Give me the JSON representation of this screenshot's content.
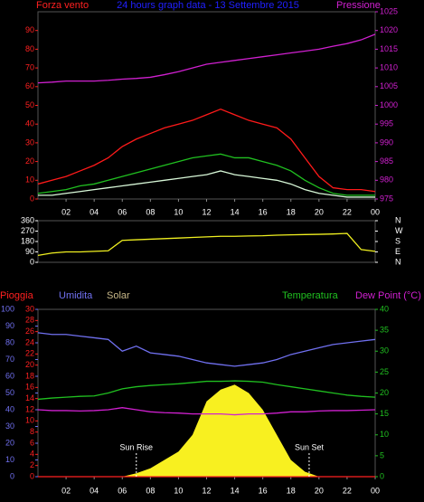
{
  "chart_data": [
    {
      "type": "line",
      "title": "24 hours graph data - 13 Settembre 2015",
      "y_label": "Forza vento",
      "x": [
        0,
        1,
        2,
        3,
        4,
        5,
        6,
        7,
        8,
        9,
        10,
        11,
        12,
        13,
        14,
        15,
        16,
        17,
        18,
        19,
        20,
        21,
        22,
        23,
        24
      ],
      "xlim": [
        0,
        24
      ],
      "xticks": [
        {
          "value": 2,
          "label": "02"
        },
        {
          "value": 4,
          "label": "04"
        },
        {
          "value": 6,
          "label": "06"
        },
        {
          "value": 8,
          "label": "08"
        },
        10,
        12,
        14,
        16,
        18,
        20,
        22,
        {
          "value": 24,
          "label": "00"
        }
      ],
      "ylim": [
        0,
        100
      ],
      "yticks": [
        0,
        10,
        20,
        30,
        40,
        50,
        60,
        70,
        80,
        90
      ],
      "y2lim": [
        975,
        1025
      ],
      "y2ticks": [
        975,
        980,
        985,
        990,
        995,
        1000,
        1005,
        1010,
        1015,
        1020,
        1025
      ],
      "series": [
        {
          "color": "#ff1a1a",
          "values": [
            8,
            10,
            12,
            15,
            18,
            22,
            28,
            32,
            35,
            38,
            40,
            42,
            45,
            48,
            45,
            42,
            40,
            38,
            32,
            22,
            12,
            6,
            5,
            5,
            4
          ]
        },
        {
          "color": "#20c020",
          "values": [
            3,
            4,
            5,
            7,
            8,
            10,
            12,
            14,
            16,
            18,
            20,
            22,
            23,
            24,
            22,
            22,
            20,
            18,
            15,
            10,
            6,
            3,
            2,
            2,
            2
          ]
        },
        {
          "color": "#d8f8d8",
          "values": [
            2,
            2,
            3,
            4,
            5,
            6,
            7,
            8,
            9,
            10,
            11,
            12,
            13,
            15,
            13,
            12,
            11,
            10,
            8,
            5,
            3,
            2,
            1,
            1,
            1
          ]
        },
        {
          "name": "Pressione",
          "color": "#d020d0",
          "axis": "y2",
          "values": [
            1006,
            1006.2,
            1006.5,
            1006.5,
            1006.5,
            1006.7,
            1007,
            1007.2,
            1007.5,
            1008.2,
            1009,
            1010,
            1011,
            1011.5,
            1012,
            1012.5,
            1013,
            1013.5,
            1014,
            1014.5,
            1015,
            1015.8,
            1016.5,
            1017.5,
            1019
          ]
        }
      ]
    },
    {
      "type": "line",
      "x": [
        0,
        1,
        2,
        3,
        4,
        5,
        6,
        7,
        8,
        9,
        10,
        11,
        12,
        13,
        14,
        15,
        16,
        17,
        18,
        19,
        20,
        21,
        22,
        23,
        24
      ],
      "xlim": [
        0,
        24
      ],
      "ylim": [
        0,
        360
      ],
      "yticks": [
        0,
        90,
        180,
        270,
        360
      ],
      "y2lim": [
        0,
        360
      ],
      "y2ticks": [
        {
          "value": 0,
          "label": "N"
        },
        {
          "value": 90,
          "label": "E"
        },
        {
          "value": 180,
          "label": "S"
        },
        {
          "value": 270,
          "label": "W"
        },
        {
          "value": 360,
          "label": "N"
        }
      ],
      "series": [
        {
          "color": "#f0f020",
          "values": [
            60,
            80,
            90,
            90,
            95,
            100,
            190,
            195,
            200,
            205,
            210,
            215,
            220,
            225,
            225,
            228,
            230,
            235,
            238,
            240,
            242,
            245,
            250,
            110,
            95
          ]
        }
      ]
    },
    {
      "type": "line",
      "x": [
        0,
        1,
        2,
        3,
        4,
        5,
        6,
        7,
        8,
        9,
        10,
        11,
        12,
        13,
        14,
        15,
        16,
        17,
        18,
        19,
        20,
        21,
        22,
        23,
        24
      ],
      "xlim": [
        0,
        24
      ],
      "xticks": [
        {
          "value": 2,
          "label": "02"
        },
        {
          "value": 4,
          "label": "04"
        },
        {
          "value": 6,
          "label": "06"
        },
        {
          "value": 8,
          "label": "08"
        },
        10,
        12,
        14,
        16,
        18,
        20,
        22,
        {
          "value": 24,
          "label": "00"
        }
      ],
      "ylim": [
        0,
        30
      ],
      "yticks": [
        0,
        2,
        4,
        6,
        8,
        10,
        12,
        14,
        16,
        18,
        20,
        22,
        24,
        26,
        28,
        30
      ],
      "y3lim": [
        0,
        100
      ],
      "y3ticks": [
        0,
        10,
        20,
        30,
        40,
        50,
        60,
        70,
        80,
        90,
        100
      ],
      "y2lim": [
        0,
        40
      ],
      "y2ticks": [
        0,
        5,
        10,
        15,
        20,
        25,
        30,
        35,
        40
      ],
      "annotations": [
        {
          "text": "Sun Rise",
          "x": 7
        },
        {
          "text": "Sun Set",
          "x": 19.3
        }
      ],
      "series": [
        {
          "name": "Solar",
          "color": "#f8f020",
          "legend_color": "#c8b888",
          "axis": "y3",
          "area": true,
          "values": [
            0,
            0,
            0,
            0,
            0,
            0,
            0,
            2,
            5,
            10,
            15,
            25,
            45,
            52,
            55,
            50,
            40,
            25,
            10,
            3,
            0,
            0,
            0,
            0,
            0
          ]
        },
        {
          "name": "Umidita",
          "color": "#7070f0",
          "axis": "y3",
          "values": [
            86,
            85,
            85,
            84,
            83,
            82,
            75,
            78,
            74,
            73,
            72,
            70,
            68,
            67,
            66,
            67,
            68,
            70,
            73,
            75,
            77,
            79,
            80,
            81,
            82
          ]
        },
        {
          "name": "Temperatura",
          "color": "#20c020",
          "axis": "y2",
          "values": [
            18.5,
            18.8,
            19,
            19.2,
            19.3,
            20,
            21,
            21.5,
            21.8,
            22,
            22.2,
            22.5,
            22.8,
            22.8,
            22.9,
            22.8,
            22.6,
            22,
            21.5,
            21,
            20.5,
            20,
            19.5,
            19.2,
            19
          ]
        },
        {
          "name": "Dew Point (°C)",
          "color": "#d020d0",
          "axis": "y2",
          "values": [
            16,
            15.8,
            15.8,
            15.7,
            15.8,
            16,
            16.5,
            16,
            15.5,
            15.3,
            15.2,
            15,
            15,
            15,
            14.8,
            15,
            15,
            15.2,
            15.5,
            15.5,
            15.7,
            15.8,
            15.8,
            15.9,
            16
          ]
        },
        {
          "name": "Pioggia",
          "color": "#ff2020",
          "axis": "y",
          "values": [
            0,
            0,
            0,
            0,
            0,
            0,
            0,
            0,
            0,
            0,
            0,
            0,
            0,
            0,
            0,
            0,
            0,
            0,
            0,
            0,
            0,
            0,
            0,
            0,
            0
          ]
        }
      ]
    }
  ]
}
